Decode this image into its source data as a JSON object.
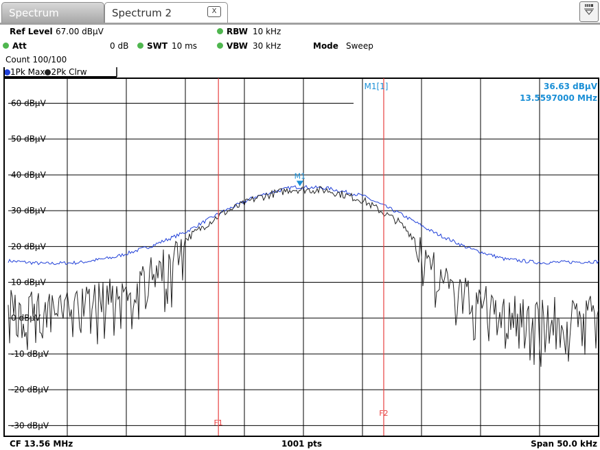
{
  "tabs": {
    "tab1_label": "Spectrum",
    "tab2_label": "Spectrum 2",
    "close_glyph": "X"
  },
  "header": {
    "ref_level_label": "Ref Level",
    "ref_level_value": "67.00 dBµV",
    "att_label": "Att",
    "att_value": "0 dB",
    "swt_label": "SWT",
    "swt_value": "10 ms",
    "rbw_label": "RBW",
    "rbw_value": "10 kHz",
    "vbw_label": "VBW",
    "vbw_value": "30 kHz",
    "mode_label": "Mode",
    "mode_value": "Sweep",
    "count": "Count 100/100"
  },
  "legend": {
    "trace1": "1Pk Max",
    "trace2": "2Pk Clrw",
    "trace1_color": "#1f3fd8",
    "trace2_color": "#222222"
  },
  "marker": {
    "label": "M1[1]",
    "level": "36.63 dBµV",
    "freq": "13.5597000 MHz",
    "tag": "M1",
    "color": "#1a8fd6"
  },
  "lines": {
    "f1": "F1",
    "f2": "F2",
    "color": "#e84040"
  },
  "footer": {
    "cf": "CF 13.56 MHz",
    "pts": "1001 pts",
    "span": "Span 50.0 kHz"
  },
  "chart_data": {
    "type": "line",
    "xlim": [
      13.535,
      13.585
    ],
    "ylim": [
      -33,
      67
    ],
    "ytick_values": [
      60,
      50,
      40,
      30,
      20,
      10,
      0,
      -10,
      -20,
      -30
    ],
    "y_ticks": [
      "60 dBµV",
      "50 dBµV",
      "40 dBµV",
      "30 dBµV",
      "20 dBµV",
      "10 dBµV",
      "0 dBµV",
      "-10 dBµV",
      "-20 dBµV",
      "-30 dBµV"
    ],
    "f1_freq": 13.5528,
    "f2_freq": 13.5668,
    "series": [
      {
        "name": "1Pk Max",
        "x": [
          13.535,
          13.538,
          13.541,
          13.544,
          13.547,
          13.55,
          13.553,
          13.556,
          13.559,
          13.5597,
          13.562,
          13.565,
          13.568,
          13.571,
          13.574,
          13.577,
          13.58,
          13.585
        ],
        "y": [
          16,
          15.2,
          15.5,
          17,
          20,
          24,
          29.5,
          34,
          36.5,
          36.63,
          36.3,
          34.2,
          29.5,
          24,
          19.5,
          16.5,
          15.5,
          15.8
        ]
      },
      {
        "name": "2Pk Clrw",
        "x": [
          13.535,
          13.538,
          13.541,
          13.544,
          13.547,
          13.55,
          13.553,
          13.556,
          13.559,
          13.5597,
          13.562,
          13.565,
          13.568,
          13.571,
          13.574,
          13.577,
          13.58,
          13.585
        ],
        "y": [
          5,
          6,
          7,
          9,
          14,
          22,
          29,
          33.5,
          36,
          35.9,
          35.7,
          33,
          27,
          17,
          8,
          5,
          3,
          4
        ]
      }
    ]
  }
}
